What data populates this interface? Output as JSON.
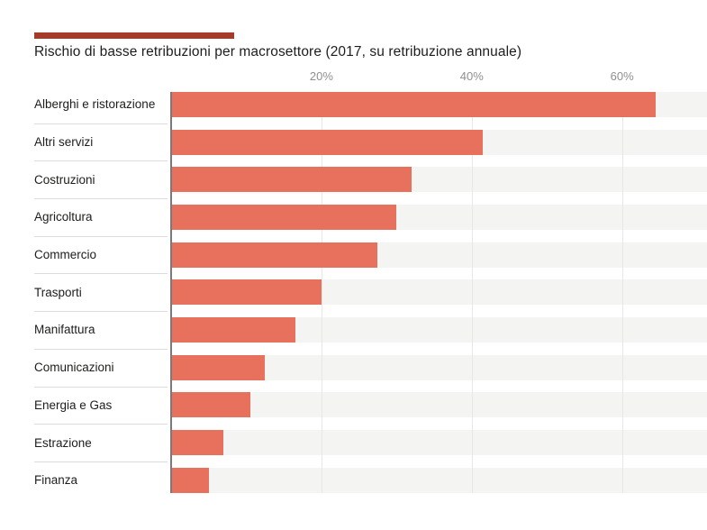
{
  "header": {
    "accent_rule": "decorative-brick-red-bar"
  },
  "colors": {
    "bar": "#e7715d",
    "track": "#f4f4f2",
    "accent_rule": "#a63b2a",
    "axis_line": "#7a7a7a",
    "tick_label": "#8f8f8f",
    "separator": "#dcdcda",
    "title_text": "#1d1d1b",
    "label_text": "#1d1d1b",
    "page_bg": "#ffffff"
  },
  "chart_data": {
    "type": "bar",
    "orientation": "horizontal",
    "title": "Rischio di basse retribuzioni per macrosettore (2017, su retribuzione annuale)",
    "categories": [
      "Alberghi e ristorazione",
      "Altri servizi",
      "Costruzioni",
      "Agricoltura",
      "Commercio",
      "Trasporti",
      "Manifattura",
      "Comunicazioni",
      "Energia e Gas",
      "Estrazione",
      "Finanza"
    ],
    "values": [
      64.5,
      41.5,
      32,
      30,
      27.5,
      20,
      16.5,
      12.5,
      10.5,
      7,
      5
    ],
    "unit": "%",
    "xlabel": "",
    "ylabel": "",
    "x_ticks": [
      "20%",
      "40%",
      "60%"
    ],
    "x_tick_values": [
      20,
      40,
      60
    ],
    "x_max": 71.3,
    "grid": true,
    "legend": false,
    "bar_labels": false
  }
}
